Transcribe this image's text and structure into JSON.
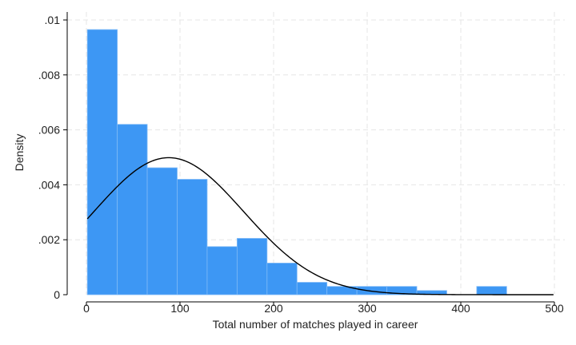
{
  "chart_data": {
    "type": "bar",
    "subtype": "histogram-with-normal-density",
    "xlabel": "Total number of matches played in career",
    "ylabel": "Density",
    "xlim": [
      0,
      500
    ],
    "ylim": [
      0,
      0.01
    ],
    "grid": true,
    "x_ticks": [
      0,
      100,
      200,
      300,
      400,
      500
    ],
    "x_tick_labels": [
      "0",
      "100",
      "200",
      "300",
      "400",
      "500"
    ],
    "y_ticks": [
      0,
      0.002,
      0.004,
      0.006,
      0.008,
      0.01
    ],
    "y_tick_labels": [
      "0",
      ".002",
      ".004",
      ".006",
      ".008",
      ".01"
    ],
    "bins": [
      {
        "from": 1,
        "to": 33,
        "density": 0.00965
      },
      {
        "from": 33,
        "to": 65,
        "density": 0.0062
      },
      {
        "from": 65,
        "to": 97,
        "density": 0.00462
      },
      {
        "from": 97,
        "to": 129,
        "density": 0.0042
      },
      {
        "from": 129,
        "to": 161,
        "density": 0.00175
      },
      {
        "from": 161,
        "to": 193,
        "density": 0.00205
      },
      {
        "from": 193,
        "to": 225,
        "density": 0.00115
      },
      {
        "from": 225,
        "to": 257,
        "density": 0.00045
      },
      {
        "from": 257,
        "to": 289,
        "density": 0.0003
      },
      {
        "from": 289,
        "to": 321,
        "density": 0.0003
      },
      {
        "from": 321,
        "to": 353,
        "density": 0.0003
      },
      {
        "from": 353,
        "to": 385,
        "density": 0.00015
      },
      {
        "from": 385,
        "to": 417,
        "density": 0
      },
      {
        "from": 417,
        "to": 449,
        "density": 0.0003
      }
    ],
    "normal_curve": {
      "mean": 88,
      "sd": 80,
      "x_range": [
        1,
        500
      ]
    },
    "colors": {
      "bar": "#3d97f4",
      "bar_edge": "#7fbaf7",
      "curve": "#000000",
      "grid": "#e6e6e6"
    }
  }
}
